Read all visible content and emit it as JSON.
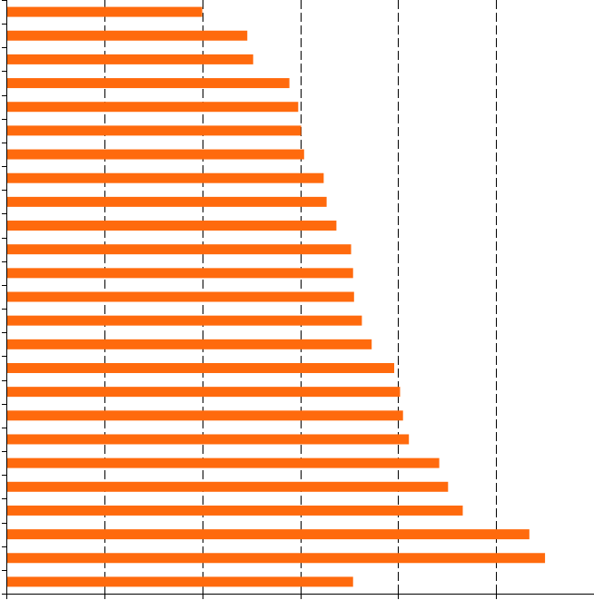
{
  "colors": {
    "bar": "#ff6a0d",
    "gridline": "#000000",
    "axis": "#000000",
    "background": "#ffffff"
  },
  "chart_data": {
    "type": "bar",
    "orientation": "horizontal",
    "title": "",
    "xlabel": "",
    "ylabel": "",
    "xlim": [
      0,
      6
    ],
    "grid": "vertical dashed",
    "legend": "none",
    "categories": [
      "",
      "",
      "",
      "",
      "",
      "",
      "",
      "",
      "",
      "",
      "",
      "",
      "",
      "",
      "",
      "",
      "",
      "",
      "",
      "",
      "",
      "",
      "",
      "",
      ""
    ],
    "values": [
      2.0,
      2.46,
      2.52,
      2.89,
      2.98,
      3.01,
      3.04,
      3.24,
      3.27,
      3.37,
      3.52,
      3.54,
      3.55,
      3.63,
      3.73,
      3.96,
      4.02,
      4.05,
      4.11,
      4.42,
      4.51,
      4.66,
      5.34,
      5.5,
      3.54
    ]
  }
}
